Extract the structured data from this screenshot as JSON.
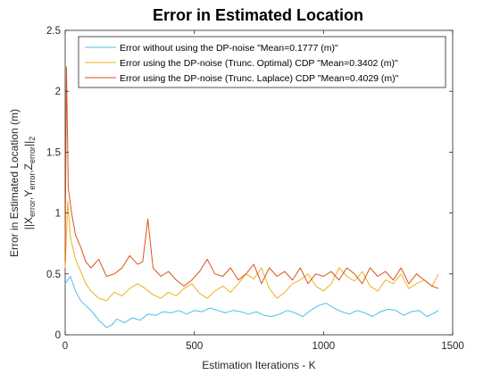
{
  "chart_data": {
    "type": "line",
    "title": "Error in Estimated Location",
    "xlabel": "Estimation Iterations - K",
    "ylabel_line1": "Error in Estimated Location (m)",
    "ylabel_line2": {
      "prefix": "||X",
      "sub1": "error",
      "mid1": ",Y",
      "sub2": "error",
      "mid2": ",Z",
      "sub3": "error",
      "suffix": "||",
      "sub4": "2"
    },
    "xlim": [
      0,
      1500
    ],
    "ylim": [
      0,
      2.5
    ],
    "xticks": [
      "0",
      "500",
      "1000",
      "1500"
    ],
    "yticks": [
      "0",
      "0.5",
      "1",
      "1.5",
      "2",
      "2.5"
    ],
    "grid": false,
    "legend_placement": "top",
    "series": [
      {
        "name": "Error without using the DP-noise \"Mean=0.1777 (m)\"",
        "color": "#4DBEEE",
        "points": [
          [
            0,
            0.42
          ],
          [
            20,
            0.48
          ],
          [
            40,
            0.36
          ],
          [
            60,
            0.28
          ],
          [
            80,
            0.24
          ],
          [
            100,
            0.2
          ],
          [
            130,
            0.12
          ],
          [
            160,
            0.06
          ],
          [
            180,
            0.08
          ],
          [
            200,
            0.13
          ],
          [
            230,
            0.1
          ],
          [
            260,
            0.14
          ],
          [
            290,
            0.12
          ],
          [
            320,
            0.17
          ],
          [
            350,
            0.16
          ],
          [
            380,
            0.19
          ],
          [
            410,
            0.18
          ],
          [
            440,
            0.2
          ],
          [
            470,
            0.17
          ],
          [
            500,
            0.2
          ],
          [
            530,
            0.19
          ],
          [
            560,
            0.22
          ],
          [
            590,
            0.2
          ],
          [
            620,
            0.18
          ],
          [
            650,
            0.2
          ],
          [
            680,
            0.19
          ],
          [
            710,
            0.17
          ],
          [
            740,
            0.19
          ],
          [
            770,
            0.16
          ],
          [
            800,
            0.15
          ],
          [
            830,
            0.17
          ],
          [
            860,
            0.2
          ],
          [
            890,
            0.18
          ],
          [
            920,
            0.15
          ],
          [
            950,
            0.2
          ],
          [
            980,
            0.24
          ],
          [
            1010,
            0.26
          ],
          [
            1040,
            0.22
          ],
          [
            1070,
            0.19
          ],
          [
            1100,
            0.17
          ],
          [
            1130,
            0.2
          ],
          [
            1160,
            0.18
          ],
          [
            1190,
            0.15
          ],
          [
            1220,
            0.19
          ],
          [
            1250,
            0.21
          ],
          [
            1280,
            0.2
          ],
          [
            1310,
            0.16
          ],
          [
            1340,
            0.19
          ],
          [
            1370,
            0.2
          ],
          [
            1400,
            0.15
          ],
          [
            1430,
            0.18
          ],
          [
            1445,
            0.2
          ]
        ]
      },
      {
        "name": "Error using the DP-noise (Trunc. Optimal) CDP \"Mean=0.3402 (m)\"",
        "color": "#EDB120",
        "points": [
          [
            0,
            0.55
          ],
          [
            10,
            1.1
          ],
          [
            20,
            0.8
          ],
          [
            40,
            0.62
          ],
          [
            60,
            0.52
          ],
          [
            80,
            0.42
          ],
          [
            100,
            0.36
          ],
          [
            130,
            0.3
          ],
          [
            160,
            0.28
          ],
          [
            190,
            0.35
          ],
          [
            220,
            0.32
          ],
          [
            250,
            0.38
          ],
          [
            280,
            0.42
          ],
          [
            310,
            0.38
          ],
          [
            340,
            0.33
          ],
          [
            370,
            0.3
          ],
          [
            400,
            0.35
          ],
          [
            430,
            0.32
          ],
          [
            460,
            0.38
          ],
          [
            490,
            0.42
          ],
          [
            520,
            0.34
          ],
          [
            550,
            0.3
          ],
          [
            580,
            0.36
          ],
          [
            610,
            0.4
          ],
          [
            640,
            0.35
          ],
          [
            670,
            0.42
          ],
          [
            700,
            0.5
          ],
          [
            730,
            0.46
          ],
          [
            760,
            0.55
          ],
          [
            790,
            0.38
          ],
          [
            820,
            0.3
          ],
          [
            850,
            0.35
          ],
          [
            880,
            0.42
          ],
          [
            910,
            0.45
          ],
          [
            940,
            0.5
          ],
          [
            970,
            0.4
          ],
          [
            1000,
            0.36
          ],
          [
            1030,
            0.42
          ],
          [
            1060,
            0.55
          ],
          [
            1090,
            0.48
          ],
          [
            1120,
            0.44
          ],
          [
            1150,
            0.52
          ],
          [
            1180,
            0.4
          ],
          [
            1210,
            0.36
          ],
          [
            1240,
            0.45
          ],
          [
            1270,
            0.42
          ],
          [
            1300,
            0.5
          ],
          [
            1330,
            0.38
          ],
          [
            1360,
            0.42
          ],
          [
            1390,
            0.45
          ],
          [
            1420,
            0.4
          ],
          [
            1445,
            0.5
          ]
        ]
      },
      {
        "name": "Error using the DP-noise (Trunc. Laplace) CDP \"Mean=0.4029 (m)\"",
        "color": "#D95319",
        "points": [
          [
            0,
            0.6
          ],
          [
            5,
            2.2
          ],
          [
            12,
            1.2
          ],
          [
            25,
            1.0
          ],
          [
            40,
            0.82
          ],
          [
            60,
            0.72
          ],
          [
            80,
            0.6
          ],
          [
            100,
            0.55
          ],
          [
            130,
            0.62
          ],
          [
            160,
            0.48
          ],
          [
            190,
            0.5
          ],
          [
            220,
            0.55
          ],
          [
            250,
            0.65
          ],
          [
            280,
            0.58
          ],
          [
            300,
            0.6
          ],
          [
            320,
            0.95
          ],
          [
            340,
            0.55
          ],
          [
            370,
            0.48
          ],
          [
            400,
            0.52
          ],
          [
            430,
            0.45
          ],
          [
            460,
            0.4
          ],
          [
            490,
            0.45
          ],
          [
            520,
            0.52
          ],
          [
            550,
            0.62
          ],
          [
            580,
            0.5
          ],
          [
            610,
            0.48
          ],
          [
            640,
            0.55
          ],
          [
            670,
            0.45
          ],
          [
            700,
            0.5
          ],
          [
            730,
            0.58
          ],
          [
            760,
            0.42
          ],
          [
            790,
            0.55
          ],
          [
            820,
            0.48
          ],
          [
            850,
            0.52
          ],
          [
            880,
            0.45
          ],
          [
            910,
            0.55
          ],
          [
            940,
            0.42
          ],
          [
            970,
            0.5
          ],
          [
            1000,
            0.48
          ],
          [
            1030,
            0.52
          ],
          [
            1060,
            0.45
          ],
          [
            1090,
            0.55
          ],
          [
            1120,
            0.5
          ],
          [
            1150,
            0.42
          ],
          [
            1180,
            0.55
          ],
          [
            1210,
            0.48
          ],
          [
            1240,
            0.52
          ],
          [
            1270,
            0.45
          ],
          [
            1300,
            0.55
          ],
          [
            1330,
            0.42
          ],
          [
            1360,
            0.5
          ],
          [
            1390,
            0.45
          ],
          [
            1420,
            0.4
          ],
          [
            1445,
            0.38
          ]
        ]
      }
    ]
  }
}
